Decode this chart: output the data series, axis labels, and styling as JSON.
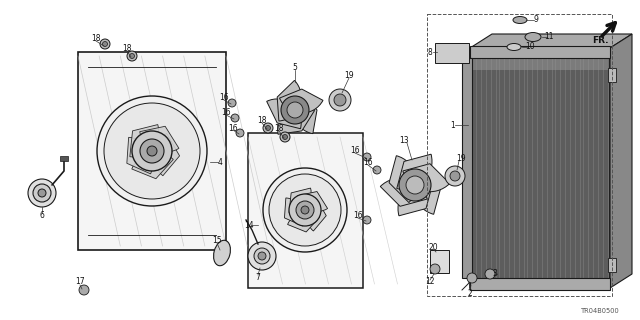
{
  "background_color": "#ffffff",
  "diagram_ref": "TR04B0500",
  "line_color": "#1a1a1a",
  "light_gray": "#aaaaaa",
  "mid_gray": "#666666",
  "dark_gray": "#333333",
  "fan_fill": "#e8e8e8",
  "shroud_fill": "#f0f0f0",
  "radiator_fill": "#888888",
  "radiator_fin_color": "#555555",
  "label_font_size": 5.5,
  "ref_font_size": 4.8
}
